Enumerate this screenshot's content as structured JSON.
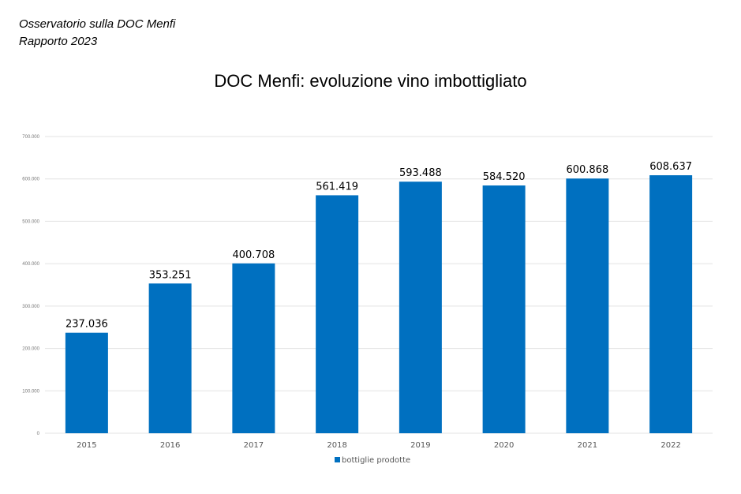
{
  "header": {
    "line1": "Osservatorio sulla DOC Menfi",
    "line2": "Rapporto 2023"
  },
  "chart_data": {
    "type": "bar",
    "title": "DOC Menfi: evoluzione vino imbottigliato",
    "categories": [
      "2015",
      "2016",
      "2017",
      "2018",
      "2019",
      "2020",
      "2021",
      "2022"
    ],
    "series": [
      {
        "name": "bottiglie prodotte",
        "values": [
          237036,
          353251,
          400708,
          561419,
          593488,
          584520,
          600868,
          608637
        ],
        "color": "#0070C0"
      }
    ],
    "data_labels": [
      "237.036",
      "353.251",
      "400.708",
      "561.419",
      "593.488",
      "584.520",
      "600.868",
      "608.637"
    ],
    "yticks": [
      0,
      100000,
      200000,
      300000,
      400000,
      500000,
      600000,
      700000
    ],
    "ytick_labels": [
      "0",
      "100.000",
      "200.000",
      "300.000",
      "400.000",
      "500.000",
      "600.000",
      "700.000"
    ],
    "ylim": [
      0,
      700000
    ],
    "xlabel": "",
    "ylabel": "",
    "grid": true,
    "legend": "bottom-center"
  }
}
